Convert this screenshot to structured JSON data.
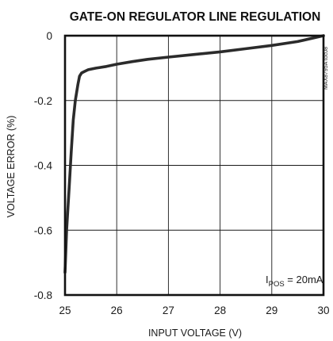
{
  "chart_data": {
    "type": "line",
    "title": "GATE-ON REGULATOR LINE REGULATION",
    "xlabel": "INPUT VOLTAGE (V)",
    "ylabel": "VOLTAGE ERROR (%)",
    "xlim": [
      25,
      30
    ],
    "ylim": [
      -0.8,
      0
    ],
    "x_ticks": [
      25,
      26,
      27,
      28,
      29,
      30
    ],
    "x_tick_labels": [
      "25",
      "26",
      "27",
      "28",
      "29",
      "30"
    ],
    "y_ticks": [
      0,
      -0.2,
      -0.4,
      -0.6,
      -0.8
    ],
    "y_tick_labels": [
      "0",
      "-0.2",
      "-0.4",
      "-0.6",
      "-0.8"
    ],
    "grid": true,
    "legend": "none",
    "code": "MAX8795A toc08",
    "annotation": {
      "prefix": "I",
      "subscript": "POS",
      "suffix": " = 20mA"
    },
    "series": [
      {
        "x": [
          25.0,
          25.03,
          25.08,
          25.12,
          25.16,
          25.2,
          25.25,
          25.28,
          25.32,
          25.38,
          25.45,
          25.6,
          25.8,
          26.0,
          26.3,
          26.6,
          27.0,
          27.5,
          28.0,
          28.5,
          29.0,
          29.5,
          30.0
        ],
        "y": [
          -0.73,
          -0.6,
          -0.47,
          -0.36,
          -0.26,
          -0.2,
          -0.15,
          -0.125,
          -0.115,
          -0.11,
          -0.105,
          -0.1,
          -0.095,
          -0.088,
          -0.08,
          -0.073,
          -0.066,
          -0.058,
          -0.05,
          -0.04,
          -0.03,
          -0.018,
          0.0
        ]
      }
    ],
    "colors": {
      "line": "#2b2b2b",
      "frame": "#111111",
      "grid": "#1a1a1a",
      "text": "#1a1a1a"
    }
  }
}
